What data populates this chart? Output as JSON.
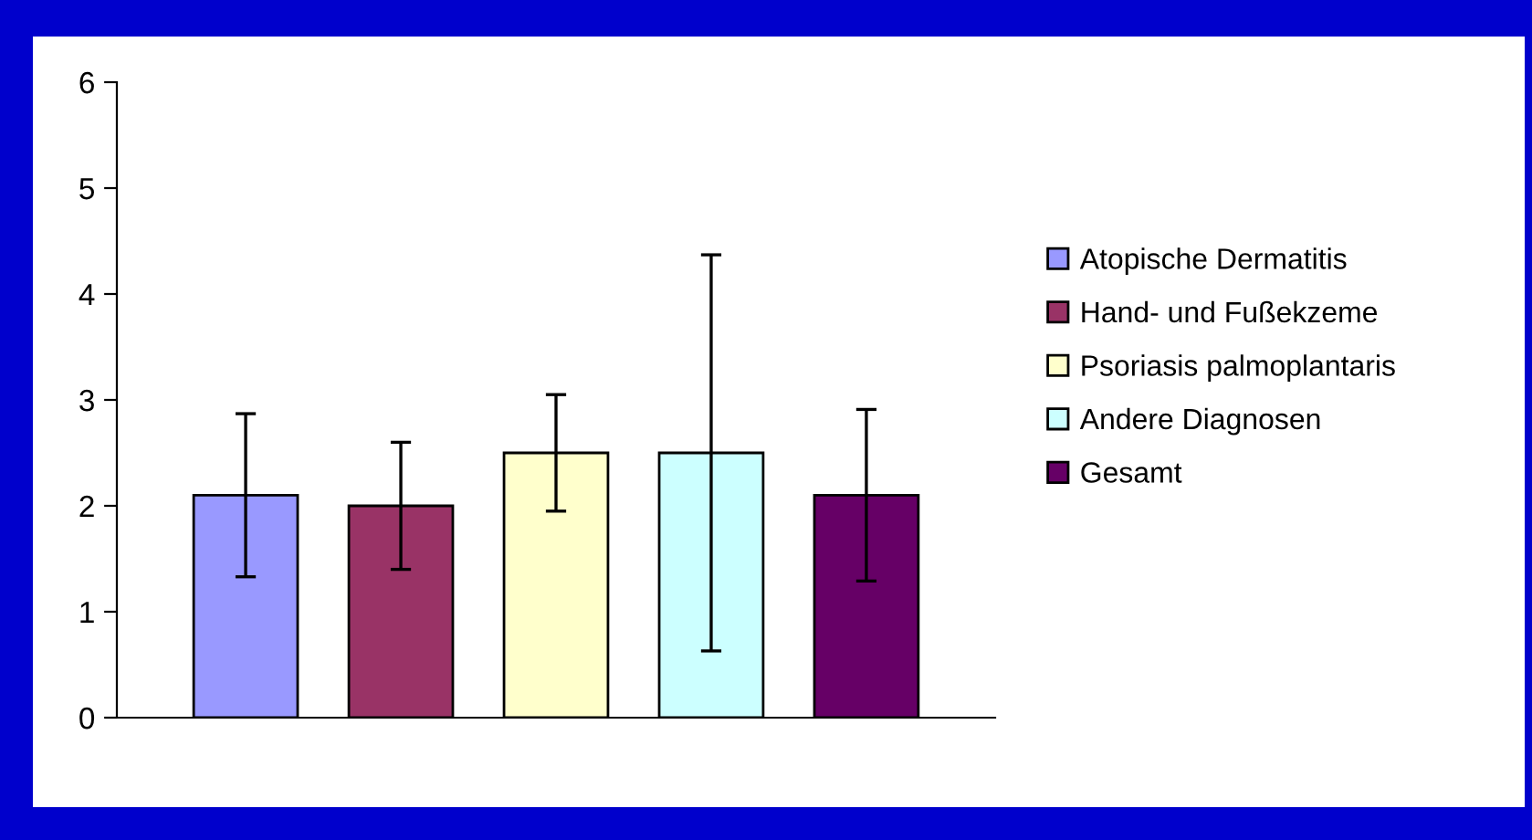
{
  "chart_data": {
    "type": "bar",
    "categories": [
      null
    ],
    "series": [
      {
        "name": "Atopische Dermatitis",
        "color": "#9999ff",
        "values": [
          2.1
        ],
        "errors": [
          0.77
        ]
      },
      {
        "name": "Hand- und Fußekzeme",
        "color": "#993366",
        "values": [
          2.0
        ],
        "errors": [
          0.6
        ]
      },
      {
        "name": "Psoriasis palmoplantaris",
        "color": "#ffffcc",
        "values": [
          2.5
        ],
        "errors": [
          0.55
        ]
      },
      {
        "name": "Andere Diagnosen",
        "color": "#ccffff",
        "values": [
          2.5
        ],
        "errors": [
          1.87
        ]
      },
      {
        "name": "Gesamt",
        "color": "#660066",
        "values": [
          2.1
        ],
        "errors": [
          0.81
        ]
      }
    ],
    "ylim": [
      0,
      6
    ],
    "yticks": [
      0,
      1,
      2,
      3,
      4,
      5,
      6
    ],
    "grid": false,
    "legend": "right"
  }
}
